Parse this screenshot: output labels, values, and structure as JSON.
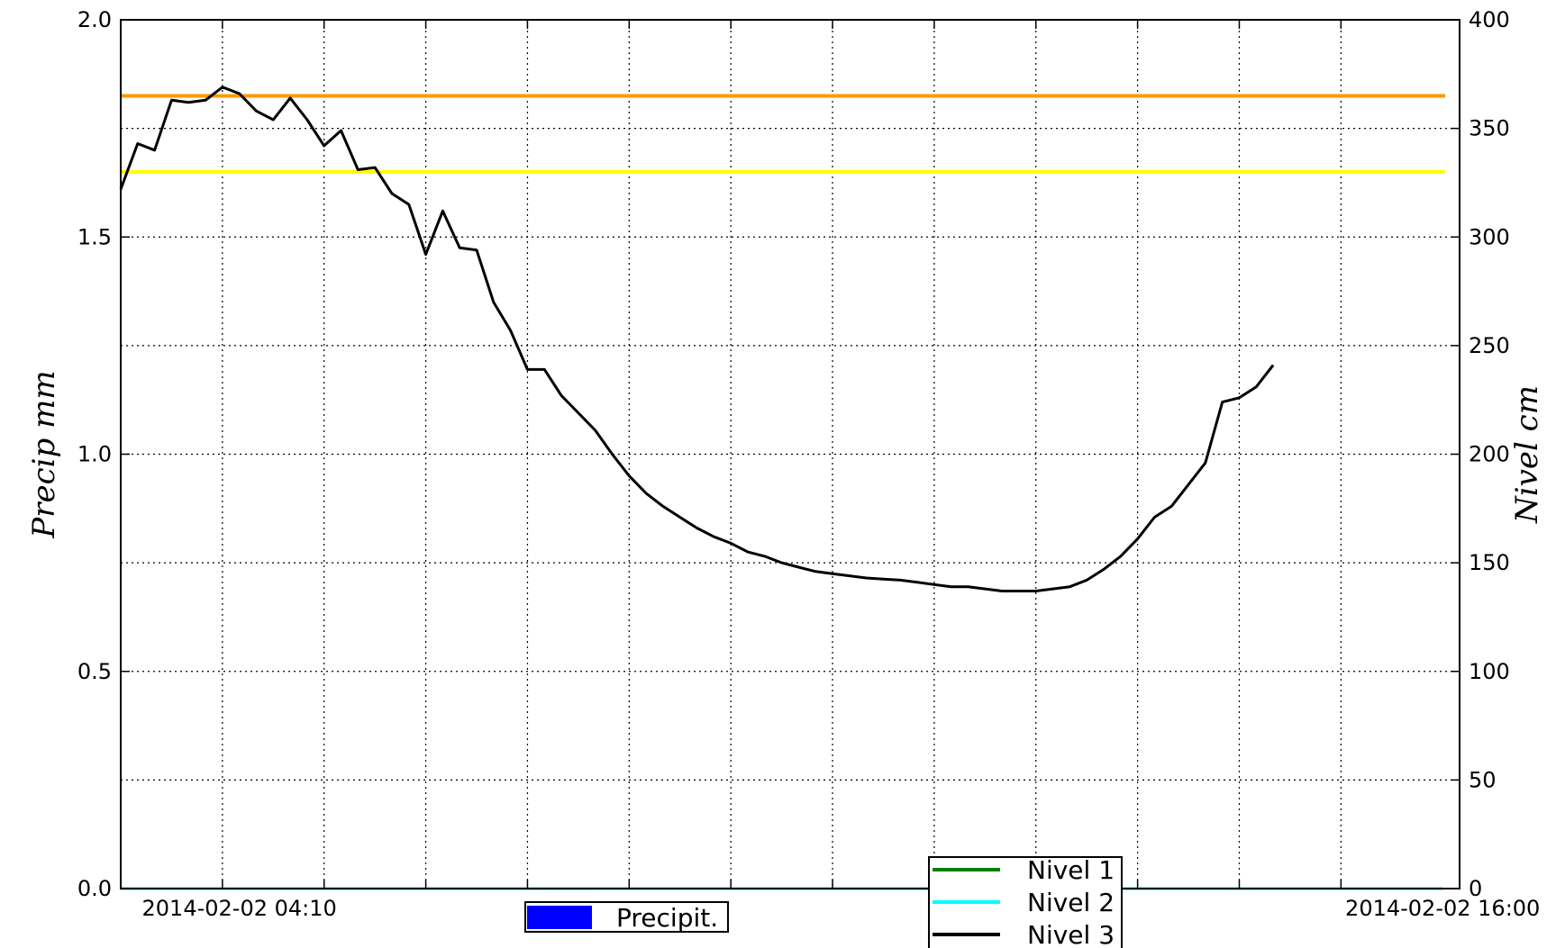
{
  "chart_data": {
    "type": "line",
    "y_left": {
      "label": "Precip mm",
      "range": [
        0,
        2.0
      ],
      "ticks": [
        "0.0",
        "0.5",
        "1.0",
        "1.5",
        "2.0"
      ],
      "tick_values": [
        0,
        0.5,
        1.0,
        1.5,
        2.0
      ]
    },
    "y_right": {
      "label": "Nivel cm",
      "range": [
        0,
        400
      ],
      "ticks": [
        "0",
        "50",
        "100",
        "150",
        "200",
        "250",
        "300",
        "350",
        "400"
      ],
      "tick_values": [
        0,
        50,
        100,
        150,
        200,
        250,
        300,
        350,
        400
      ]
    },
    "x_axis": {
      "range": [
        "2014-02-02 03:00",
        "2014-02-02 16:10"
      ],
      "labeled_ticks": [
        {
          "time": "2014-02-02 04:10",
          "label": "2014-02-02 04:10"
        },
        {
          "time": "2014-02-02 16:00",
          "label": "2014-02-02 16:00"
        }
      ],
      "grid_times": [
        "2014-02-02 04:00",
        "2014-02-02 05:00",
        "2014-02-02 06:00",
        "2014-02-02 07:00",
        "2014-02-02 08:00",
        "2014-02-02 09:00",
        "2014-02-02 10:00",
        "2014-02-02 11:00",
        "2014-02-02 12:00",
        "2014-02-02 13:00",
        "2014-02-02 14:00",
        "2014-02-02 15:00"
      ]
    },
    "grid": true,
    "thresholds": [
      {
        "value_cm": 365,
        "color": "#ff9900"
      },
      {
        "value_cm": 330,
        "color": "#ffff00"
      }
    ],
    "series": [
      {
        "name": "Precipit.",
        "axis": "left",
        "kind": "bar",
        "color": "#0000ff",
        "values": []
      },
      {
        "name": "Nivel 1",
        "axis": "right",
        "color": "#008000",
        "values": []
      },
      {
        "name": "Nivel 2",
        "axis": "right",
        "color": "#00ffff",
        "points": [
          [
            "2014-02-02 03:00",
            0
          ],
          [
            "2014-02-02 16:00",
            0
          ]
        ]
      },
      {
        "name": "Nivel 3",
        "axis": "right",
        "color": "#000000",
        "points": [
          [
            "2014-02-02 03:00",
            322
          ],
          [
            "2014-02-02 03:10",
            343
          ],
          [
            "2014-02-02 03:20",
            340
          ],
          [
            "2014-02-02 03:30",
            363
          ],
          [
            "2014-02-02 03:40",
            362
          ],
          [
            "2014-02-02 03:50",
            363
          ],
          [
            "2014-02-02 04:00",
            369
          ],
          [
            "2014-02-02 04:10",
            366
          ],
          [
            "2014-02-02 04:20",
            358
          ],
          [
            "2014-02-02 04:30",
            354
          ],
          [
            "2014-02-02 04:40",
            364
          ],
          [
            "2014-02-02 04:50",
            354
          ],
          [
            "2014-02-02 05:00",
            342
          ],
          [
            "2014-02-02 05:10",
            349
          ],
          [
            "2014-02-02 05:20",
            331
          ],
          [
            "2014-02-02 05:30",
            332
          ],
          [
            "2014-02-02 05:40",
            320
          ],
          [
            "2014-02-02 05:50",
            315
          ],
          [
            "2014-02-02 06:00",
            292
          ],
          [
            "2014-02-02 06:10",
            312
          ],
          [
            "2014-02-02 06:20",
            295
          ],
          [
            "2014-02-02 06:30",
            294
          ],
          [
            "2014-02-02 06:40",
            270
          ],
          [
            "2014-02-02 06:50",
            257
          ],
          [
            "2014-02-02 07:00",
            239
          ],
          [
            "2014-02-02 07:10",
            239
          ],
          [
            "2014-02-02 07:20",
            227
          ],
          [
            "2014-02-02 07:30",
            219
          ],
          [
            "2014-02-02 07:40",
            211
          ],
          [
            "2014-02-02 07:50",
            200
          ],
          [
            "2014-02-02 08:00",
            190
          ],
          [
            "2014-02-02 08:10",
            182
          ],
          [
            "2014-02-02 08:20",
            176
          ],
          [
            "2014-02-02 08:30",
            171
          ],
          [
            "2014-02-02 08:40",
            166
          ],
          [
            "2014-02-02 08:50",
            162
          ],
          [
            "2014-02-02 09:00",
            159
          ],
          [
            "2014-02-02 09:10",
            155
          ],
          [
            "2014-02-02 09:20",
            153
          ],
          [
            "2014-02-02 09:30",
            150
          ],
          [
            "2014-02-02 09:40",
            148
          ],
          [
            "2014-02-02 09:50",
            146
          ],
          [
            "2014-02-02 10:00",
            145
          ],
          [
            "2014-02-02 10:10",
            144
          ],
          [
            "2014-02-02 10:20",
            143
          ],
          [
            "2014-02-02 10:30",
            142.5
          ],
          [
            "2014-02-02 10:40",
            142
          ],
          [
            "2014-02-02 10:50",
            141
          ],
          [
            "2014-02-02 11:00",
            140
          ],
          [
            "2014-02-02 11:10",
            139
          ],
          [
            "2014-02-02 11:20",
            139
          ],
          [
            "2014-02-02 11:30",
            138
          ],
          [
            "2014-02-02 11:40",
            137
          ],
          [
            "2014-02-02 11:50",
            137
          ],
          [
            "2014-02-02 12:00",
            137
          ],
          [
            "2014-02-02 12:10",
            138
          ],
          [
            "2014-02-02 12:20",
            139
          ],
          [
            "2014-02-02 12:30",
            142
          ],
          [
            "2014-02-02 12:40",
            147
          ],
          [
            "2014-02-02 12:50",
            153
          ],
          [
            "2014-02-02 13:00",
            161
          ],
          [
            "2014-02-02 13:10",
            171
          ],
          [
            "2014-02-02 13:20",
            176
          ],
          [
            "2014-02-02 13:30",
            186
          ],
          [
            "2014-02-02 13:40",
            196
          ],
          [
            "2014-02-02 13:50",
            224
          ],
          [
            "2014-02-02 14:00",
            226
          ],
          [
            "2014-02-02 14:10",
            231
          ],
          [
            "2014-02-02 14:20",
            241
          ]
        ]
      }
    ],
    "legends": [
      {
        "position": "bottom-center-left",
        "entries": [
          "Precipit."
        ]
      },
      {
        "position": "bottom-center",
        "entries": [
          "Nivel 1",
          "Nivel 2",
          "Nivel 3"
        ]
      }
    ]
  }
}
